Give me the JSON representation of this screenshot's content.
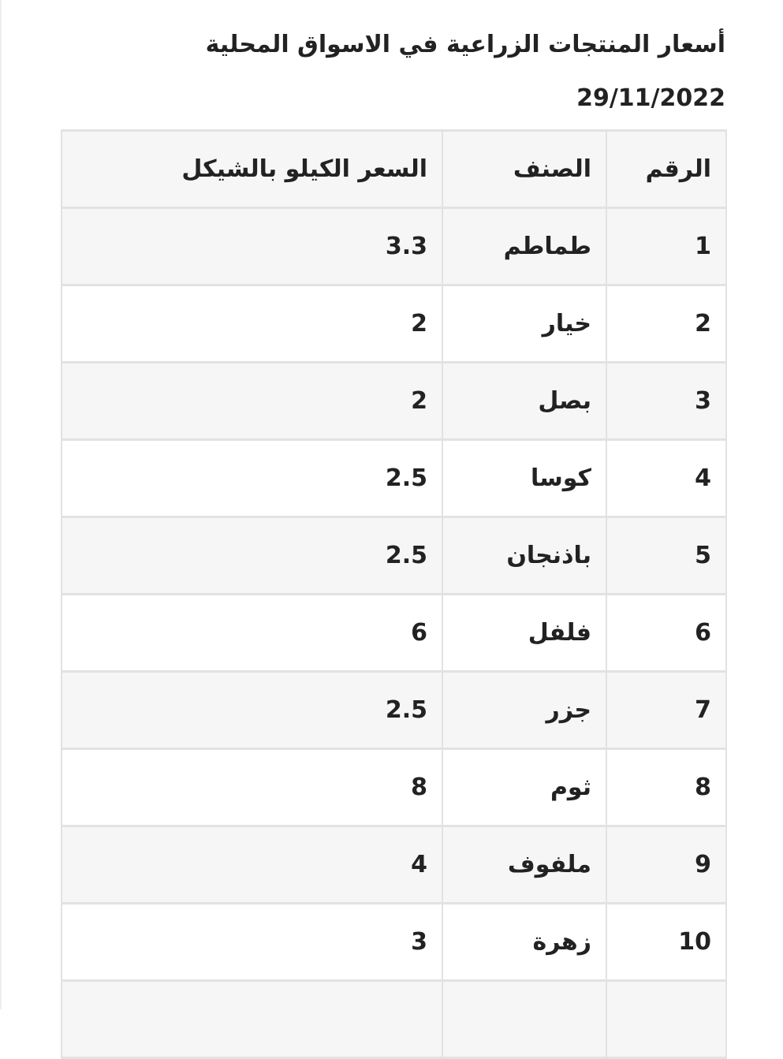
{
  "title": "أسعار المنتجات الزراعية في الاسواق المحلية",
  "date": "29/11/2022",
  "table": {
    "headers": [
      "الرقم",
      "الصنف",
      "السعر الكيلو بالشيكل"
    ],
    "rows": [
      [
        "1",
        "طماطم",
        "3.3"
      ],
      [
        "2",
        "خيار",
        "2"
      ],
      [
        "3",
        "بصل",
        "2"
      ],
      [
        "4",
        "كوسا",
        "2.5"
      ],
      [
        "5",
        "باذنجان",
        "2.5"
      ],
      [
        "6",
        "فلفل",
        "6"
      ],
      [
        "7",
        "جزر",
        "2.5"
      ],
      [
        "8",
        "ثوم",
        "8"
      ],
      [
        "9",
        "ملفوف",
        "4"
      ],
      [
        "10",
        "زهرة",
        "3"
      ]
    ]
  }
}
